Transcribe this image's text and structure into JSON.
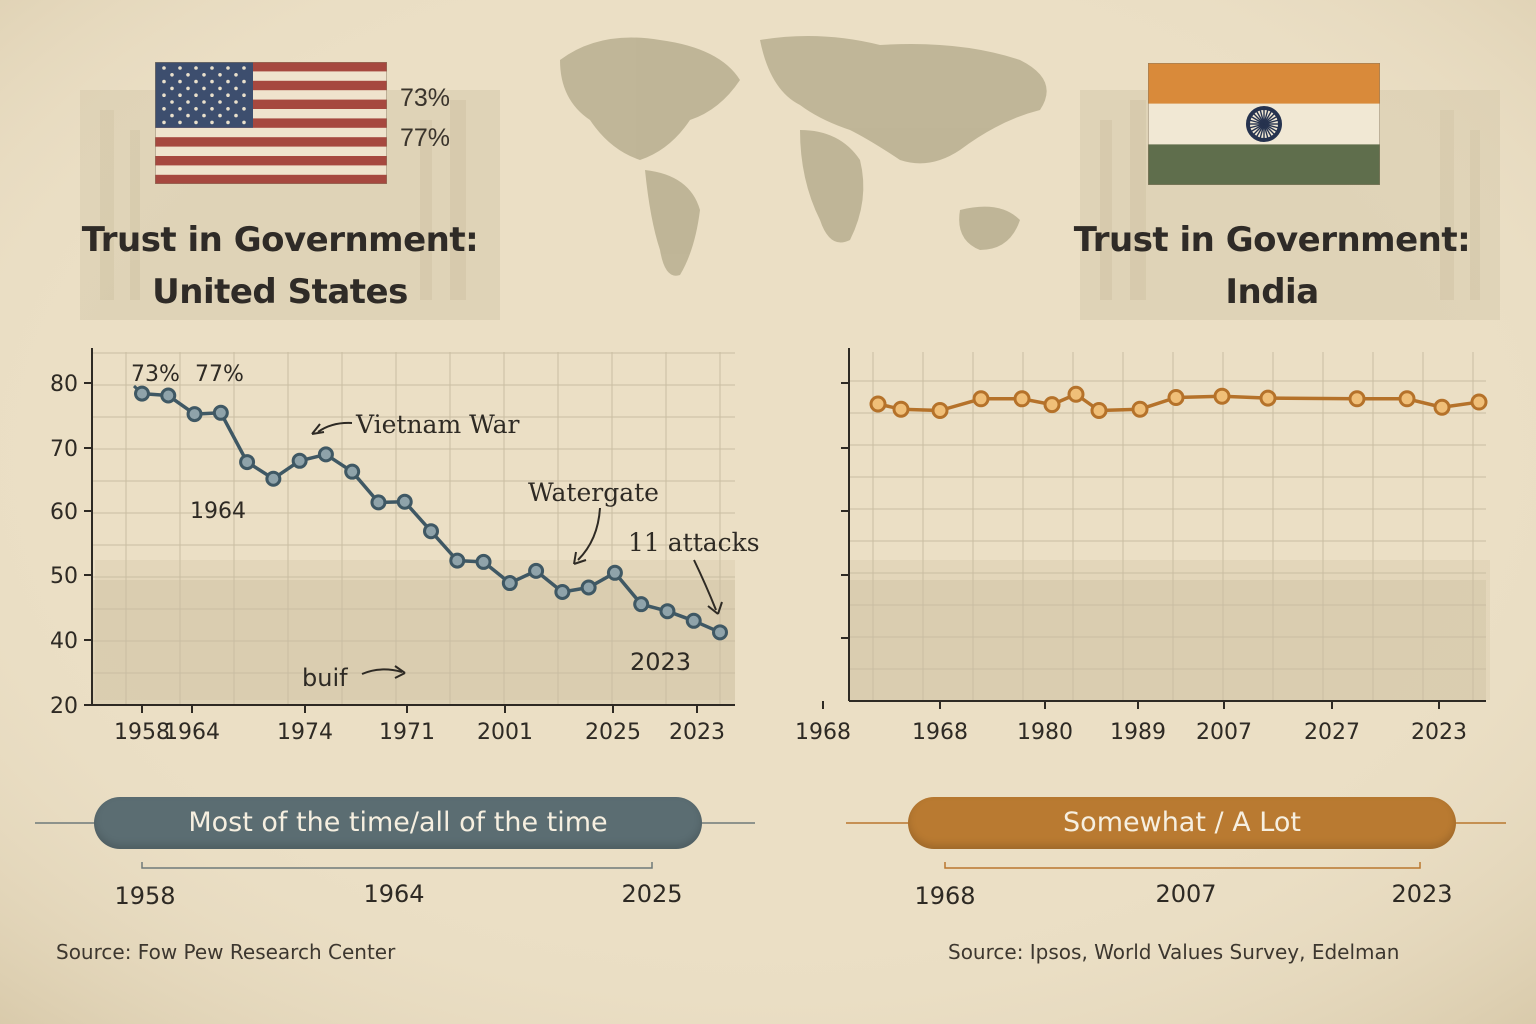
{
  "us": {
    "title_line1": "Trust in Government:",
    "title_line2": "United States",
    "flag_pct_1": "73%",
    "flag_pct_2": "77%",
    "legend_label": "Most of the time/all of the time",
    "legend_years": [
      "1958",
      "1964",
      "2025"
    ],
    "source": "Source: Fow Pew Research Center"
  },
  "india": {
    "title_line1": "Trust in Government:",
    "title_line2": "India",
    "legend_label": "Somewhat / A Lot",
    "legend_years": [
      "1968",
      "2007",
      "2023"
    ],
    "source": "Source: Ipsos, World Values Survey, Edelman"
  },
  "colors": {
    "us_series": "#3f5864",
    "us_marker_fill": "#8fa3aa",
    "india_series": "#b5722a",
    "india_marker_fill": "#f0bf78",
    "us_pill": "#5b6d72",
    "india_pill": "#b97a31"
  },
  "chart_data": [
    {
      "type": "line",
      "x_tick_labels": [
        "1958",
        "1964",
        "1974",
        "1971",
        "2001",
        "2025",
        "2023"
      ],
      "y_tick_labels": [
        "80",
        "70",
        "60",
        "50",
        "40",
        "20"
      ],
      "ylim": [
        20,
        85
      ],
      "series": [
        {
          "values": [
            78.5,
            78.2,
            75.3,
            75.5,
            67.8,
            65.2,
            68.0,
            69.0,
            66.3,
            61.5,
            61.6,
            57.0,
            52.4,
            52.2,
            48.9,
            50.8,
            47.5,
            48.2,
            50.5,
            45.6,
            44.5,
            43.0,
            41.2
          ]
        }
      ],
      "annotations": [
        {
          "text": "73%"
        },
        {
          "text": "77%"
        },
        {
          "text": "1964"
        },
        {
          "text": "Vietnam War"
        },
        {
          "text": "Watergate"
        },
        {
          "text": "11 attacks"
        },
        {
          "text": "2023"
        },
        {
          "text": "buif"
        }
      ],
      "grid": true
    },
    {
      "type": "line",
      "x_tick_labels": [
        "1968",
        "1968",
        "1980",
        "1989",
        "2007",
        "2027",
        "2023"
      ],
      "series": [
        {
          "values": [
            76.0,
            75.2,
            75.0,
            76.8,
            76.8,
            75.9,
            77.5,
            75.0,
            75.2,
            77.0,
            77.2,
            76.9,
            76.8,
            76.8,
            75.5,
            76.3
          ]
        }
      ],
      "grid": true
    }
  ]
}
